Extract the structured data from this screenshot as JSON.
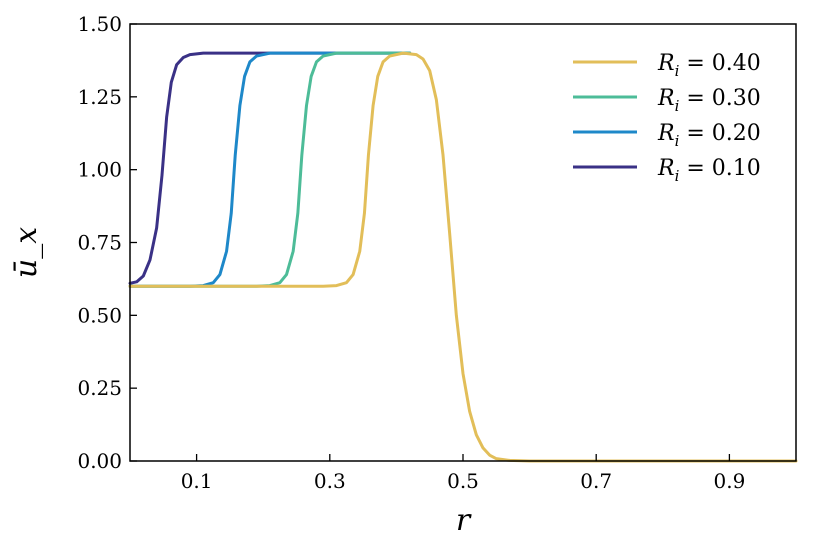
{
  "chart_data": {
    "type": "line",
    "xlabel": "r",
    "ylabel": "ū_x",
    "xlim": [
      0.0,
      1.0
    ],
    "ylim": [
      0.0,
      1.5
    ],
    "x_ticks": [
      {
        "value": 0.1,
        "label": "0.1"
      },
      {
        "value": 0.3,
        "label": "0.3"
      },
      {
        "value": 0.5,
        "label": "0.5"
      },
      {
        "value": 0.7,
        "label": "0.7"
      },
      {
        "value": 0.9,
        "label": "0.9"
      }
    ],
    "y_ticks": [
      {
        "value": 0.0,
        "label": "0.00"
      },
      {
        "value": 0.25,
        "label": "0.25"
      },
      {
        "value": 0.5,
        "label": "0.50"
      },
      {
        "value": 0.75,
        "label": "0.75"
      },
      {
        "value": 1.0,
        "label": "1.00"
      },
      {
        "value": 1.25,
        "label": "1.25"
      },
      {
        "value": 1.5,
        "label": "1.50"
      }
    ],
    "grid": false,
    "legend_position": "top-right",
    "series": [
      {
        "name": "R_i = 0.40",
        "legend_var": "R",
        "legend_sub": "i",
        "legend_value": " = 0.40",
        "color": "#E2BE59",
        "points": [
          [
            0.0,
            0.6
          ],
          [
            0.1,
            0.6
          ],
          [
            0.2,
            0.6
          ],
          [
            0.29,
            0.6
          ],
          [
            0.31,
            0.602
          ],
          [
            0.325,
            0.612
          ],
          [
            0.335,
            0.64
          ],
          [
            0.345,
            0.72
          ],
          [
            0.352,
            0.85
          ],
          [
            0.358,
            1.05
          ],
          [
            0.365,
            1.22
          ],
          [
            0.372,
            1.32
          ],
          [
            0.38,
            1.37
          ],
          [
            0.39,
            1.39
          ],
          [
            0.41,
            1.4
          ],
          [
            0.43,
            1.395
          ],
          [
            0.44,
            1.38
          ],
          [
            0.45,
            1.34
          ],
          [
            0.46,
            1.24
          ],
          [
            0.47,
            1.05
          ],
          [
            0.48,
            0.78
          ],
          [
            0.49,
            0.5
          ],
          [
            0.5,
            0.3
          ],
          [
            0.51,
            0.17
          ],
          [
            0.52,
            0.09
          ],
          [
            0.53,
            0.045
          ],
          [
            0.54,
            0.02
          ],
          [
            0.55,
            0.008
          ],
          [
            0.57,
            0.002
          ],
          [
            0.6,
            0.0
          ],
          [
            0.8,
            0.0
          ],
          [
            1.0,
            0.0
          ]
        ]
      },
      {
        "name": "R_i = 0.30",
        "legend_var": "R",
        "legend_sub": "i",
        "legend_value": " = 0.30",
        "color": "#4DBC98",
        "points": [
          [
            0.0,
            0.6
          ],
          [
            0.1,
            0.6
          ],
          [
            0.19,
            0.6
          ],
          [
            0.21,
            0.602
          ],
          [
            0.225,
            0.612
          ],
          [
            0.235,
            0.64
          ],
          [
            0.245,
            0.72
          ],
          [
            0.252,
            0.85
          ],
          [
            0.258,
            1.05
          ],
          [
            0.265,
            1.22
          ],
          [
            0.272,
            1.32
          ],
          [
            0.28,
            1.37
          ],
          [
            0.29,
            1.39
          ],
          [
            0.31,
            1.4
          ],
          [
            0.42,
            1.4
          ]
        ]
      },
      {
        "name": "R_i = 0.20",
        "legend_var": "R",
        "legend_sub": "i",
        "legend_value": " = 0.20",
        "color": "#1E88C9",
        "points": [
          [
            0.0,
            0.6
          ],
          [
            0.09,
            0.6
          ],
          [
            0.11,
            0.602
          ],
          [
            0.125,
            0.612
          ],
          [
            0.135,
            0.64
          ],
          [
            0.145,
            0.72
          ],
          [
            0.152,
            0.85
          ],
          [
            0.158,
            1.05
          ],
          [
            0.165,
            1.22
          ],
          [
            0.172,
            1.32
          ],
          [
            0.18,
            1.37
          ],
          [
            0.19,
            1.39
          ],
          [
            0.21,
            1.4
          ],
          [
            0.42,
            1.4
          ]
        ]
      },
      {
        "name": "R_i = 0.10",
        "legend_var": "R",
        "legend_sub": "i",
        "legend_value": " = 0.10",
        "color": "#3A3186",
        "points": [
          [
            0.0,
            0.61
          ],
          [
            0.01,
            0.615
          ],
          [
            0.02,
            0.635
          ],
          [
            0.03,
            0.69
          ],
          [
            0.04,
            0.8
          ],
          [
            0.048,
            0.98
          ],
          [
            0.055,
            1.18
          ],
          [
            0.062,
            1.3
          ],
          [
            0.07,
            1.36
          ],
          [
            0.08,
            1.385
          ],
          [
            0.09,
            1.395
          ],
          [
            0.11,
            1.4
          ],
          [
            0.42,
            1.4
          ]
        ]
      }
    ]
  }
}
